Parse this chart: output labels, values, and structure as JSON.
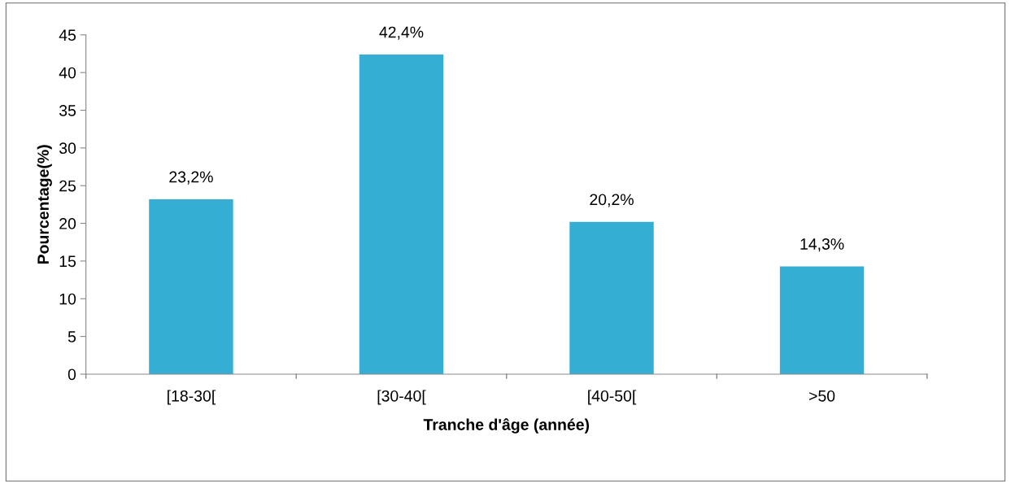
{
  "chart_data": {
    "type": "bar",
    "xlabel": "Tranche d'âge (année)",
    "ylabel": "Pourcentage(%)",
    "categories": [
      "[18-30[",
      "[30-40[",
      "[40-50[",
      ">50"
    ],
    "values": [
      23.2,
      42.4,
      20.2,
      14.3
    ],
    "value_labels": [
      "23,2%",
      "42,4%",
      "20,2%",
      "14,3%"
    ],
    "color": "#35aed3",
    "ylim": [
      0,
      45
    ],
    "yticks": [
      0,
      5,
      10,
      15,
      20,
      25,
      30,
      35,
      40,
      45
    ],
    "grid": false,
    "legend": false
  }
}
